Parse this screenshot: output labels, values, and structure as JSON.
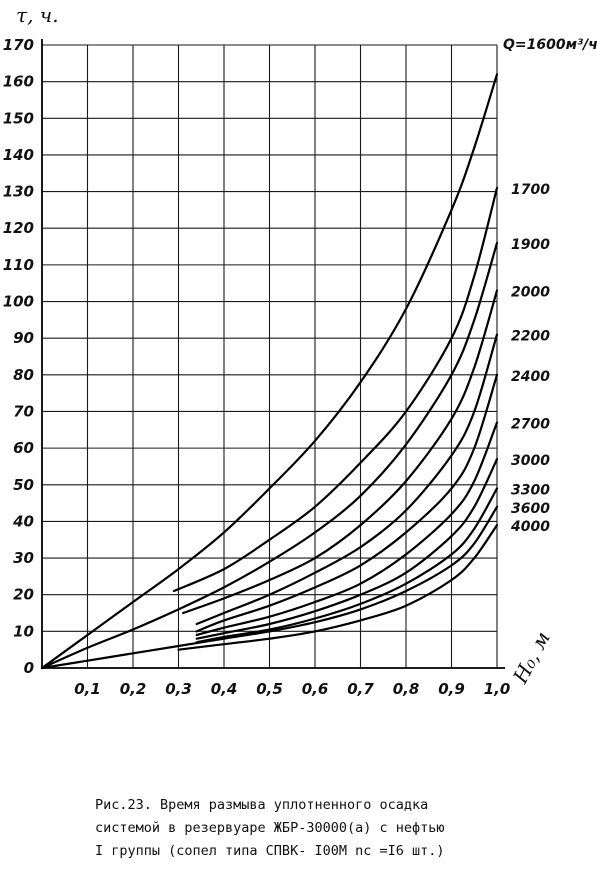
{
  "chart_data": {
    "type": "line",
    "title": "",
    "ylabel": "τ, ч.",
    "xlabel": "H₀, м",
    "xlim": [
      0,
      1.0
    ],
    "ylim": [
      0,
      170
    ],
    "x_ticks": [
      "0,1",
      "0,2",
      "0,3",
      "0,4",
      "0,5",
      "0,6",
      "0,7",
      "0,8",
      "0,9",
      "1,0"
    ],
    "y_ticks": [
      "0",
      "10",
      "20",
      "30",
      "40",
      "50",
      "60",
      "70",
      "80",
      "90",
      "100",
      "110",
      "120",
      "130",
      "140",
      "150",
      "160",
      "170"
    ],
    "grid": true,
    "series": [
      {
        "name": "Q=1600м³/ч",
        "x": [
          0,
          0.1,
          0.2,
          0.3,
          0.4,
          0.5,
          0.6,
          0.7,
          0.8,
          0.9,
          0.95,
          1.0
        ],
        "y": [
          0,
          9,
          18,
          27,
          37,
          49,
          62,
          78,
          98,
          125,
          142,
          162
        ]
      },
      {
        "name": "1700",
        "x": [
          0.29,
          0.4,
          0.5,
          0.6,
          0.7,
          0.8,
          0.9,
          0.95,
          1.0
        ],
        "y": [
          21,
          27,
          35,
          44,
          56,
          70,
          90,
          107,
          131
        ]
      },
      {
        "name": "1900",
        "x": [
          0,
          0.1,
          0.2,
          0.3,
          0.4,
          0.5,
          0.6,
          0.7,
          0.8,
          0.9,
          0.95,
          1.0
        ],
        "y": [
          0,
          5.5,
          10.5,
          16,
          22,
          29,
          37,
          47,
          61,
          80,
          95,
          116
        ]
      },
      {
        "name": "2000",
        "x": [
          0.31,
          0.4,
          0.5,
          0.6,
          0.7,
          0.8,
          0.9,
          0.95,
          1.0
        ],
        "y": [
          15,
          19,
          24,
          30,
          39,
          51,
          68,
          82,
          103
        ]
      },
      {
        "name": "2200",
        "x": [
          0.34,
          0.4,
          0.5,
          0.6,
          0.7,
          0.8,
          0.9,
          0.95,
          1.0
        ],
        "y": [
          12,
          15,
          20,
          26,
          33,
          43,
          58,
          70,
          91
        ]
      },
      {
        "name": "2400",
        "x": [
          0.34,
          0.4,
          0.5,
          0.6,
          0.7,
          0.8,
          0.9,
          0.95,
          1.0
        ],
        "y": [
          10,
          13,
          17,
          22,
          28,
          37,
          49,
          60,
          80
        ]
      },
      {
        "name": "2700",
        "x": [
          0.34,
          0.4,
          0.5,
          0.6,
          0.7,
          0.8,
          0.9,
          0.95,
          1.0
        ],
        "y": [
          9,
          11,
          14,
          18,
          23,
          31,
          42,
          51,
          67
        ]
      },
      {
        "name": "3000",
        "x": [
          0.34,
          0.4,
          0.5,
          0.6,
          0.7,
          0.8,
          0.9,
          0.95,
          1.0
        ],
        "y": [
          8,
          9.5,
          12,
          15.5,
          20,
          26,
          36,
          44,
          57
        ]
      },
      {
        "name": "3300",
        "x": [
          0.34,
          0.4,
          0.5,
          0.6,
          0.7,
          0.8,
          0.9,
          0.95,
          1.0
        ],
        "y": [
          7,
          8.5,
          10.5,
          13.5,
          17.5,
          23,
          31,
          38,
          49
        ]
      },
      {
        "name": "3600",
        "x": [
          0,
          0.1,
          0.2,
          0.3,
          0.4,
          0.5,
          0.6,
          0.7,
          0.8,
          0.9,
          0.95,
          1.0
        ],
        "y": [
          0,
          2,
          4,
          6,
          8,
          10,
          12.5,
          16,
          21,
          28,
          34,
          44
        ]
      },
      {
        "name": "4000",
        "x": [
          0.3,
          0.4,
          0.5,
          0.6,
          0.7,
          0.8,
          0.9,
          0.95,
          1.0
        ],
        "y": [
          5,
          6.5,
          8,
          10,
          13,
          17,
          24,
          30,
          39
        ]
      }
    ]
  },
  "caption": {
    "line1": "Рис.23.    Время размыва уплотненного осадка",
    "line2": "системой в резервуаре ЖБР-30000(а) с нефтью",
    "line3": "I группы (сопел типа СПВК- I00М   nс =I6 шт.)"
  }
}
